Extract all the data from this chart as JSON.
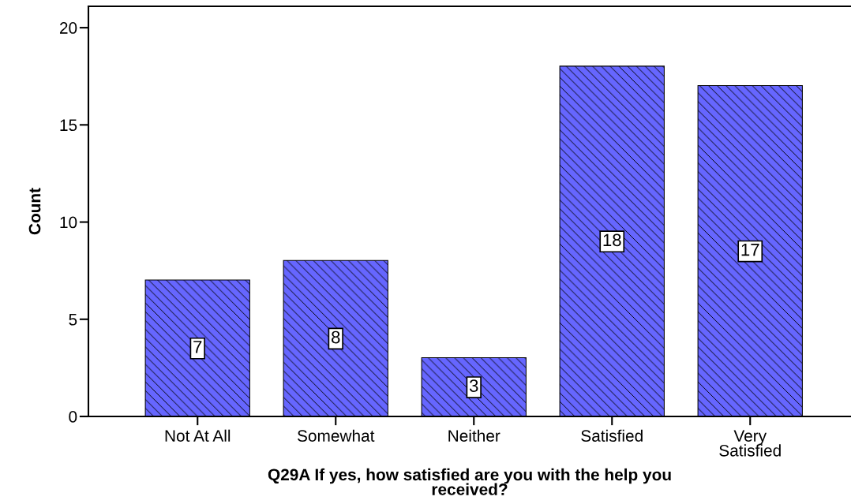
{
  "chart_data": {
    "type": "bar",
    "xlabel": "Q29A If yes, how satisfied are you with the help you received?",
    "ylabel": "Count",
    "categories": [
      "Not At All",
      "Somewhat",
      "Neither",
      "Satisfied",
      "Very Satisfied"
    ],
    "values": [
      7,
      8,
      3,
      18,
      17
    ],
    "color": "#6666ff",
    "ylim": [
      0,
      21.1
    ],
    "yticks": [
      0,
      5,
      10,
      15,
      20
    ],
    "data_labels": true,
    "grid": false,
    "legend": false
  }
}
